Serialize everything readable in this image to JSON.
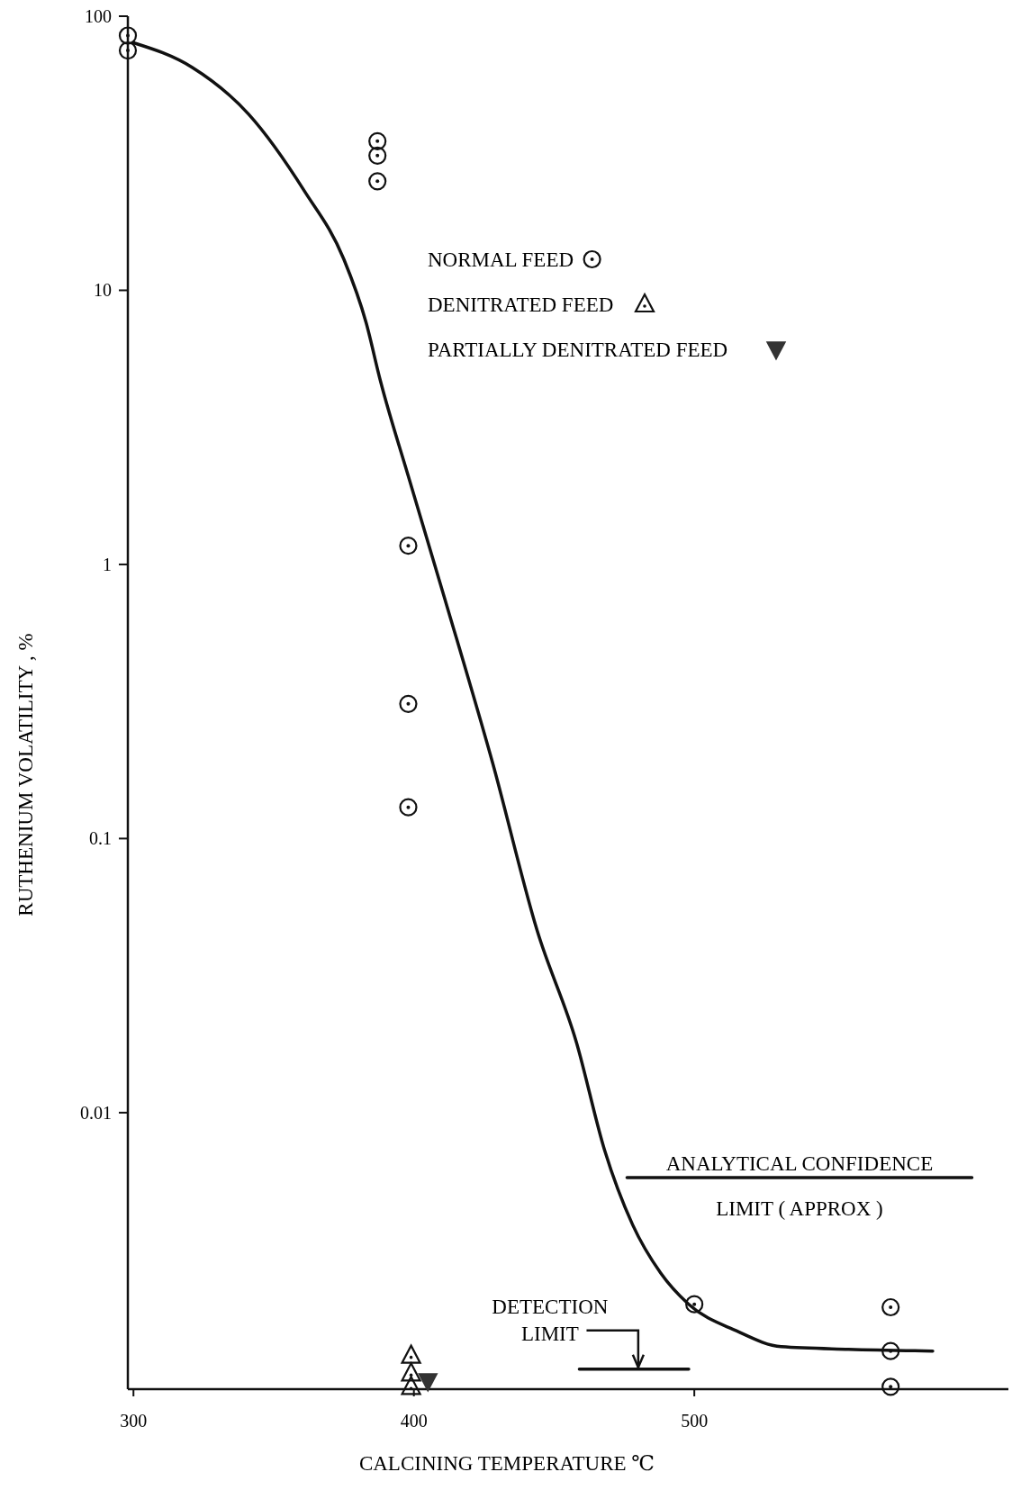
{
  "chart_data": {
    "type": "scatter",
    "xlabel": "CALCINING TEMPERATURE ℃",
    "ylabel": "RUTHENIUM VOLATILITY , %",
    "log": "y",
    "xlim": [
      298,
      612
    ],
    "ylim": [
      0.00098,
      100
    ],
    "xticks": [
      300,
      400,
      500
    ],
    "yticks": [
      0.01,
      0.1,
      1,
      10,
      100
    ],
    "grid": false,
    "legend": "top right",
    "annotations": [
      "ANALYTICAL CONFIDENCE",
      "LIMIT ( APPROX )",
      {
        "text": "DETECTION",
        "x": 480,
        "y": 0.00116
      },
      {
        "text": "LIMIT",
        "x": 480,
        "y": 0.00116
      }
    ],
    "series": [
      {
        "type": "line",
        "color": "#111111",
        "marker": "none",
        "line_style": "solid",
        "x": [
          300,
          321,
          341,
          361,
          375,
          383,
          388,
          398,
          411,
          428,
          444,
          458,
          468,
          478,
          488,
          498,
          515,
          531,
          555,
          585
        ],
        "values": [
          80,
          65,
          44,
          23,
          13,
          7.6,
          4.7,
          2.1,
          0.75,
          0.19,
          0.046,
          0.018,
          0.0073,
          0.0039,
          0.0026,
          0.002,
          0.0016,
          0.0014,
          0.00137,
          0.00135
        ]
      },
      {
        "type": "line",
        "color": "#111111",
        "marker": "none",
        "line_style": "solid",
        "x": [
          476,
          599
        ],
        "values": [
          0.0058,
          0.0058
        ]
      },
      {
        "type": "line",
        "color": "#111111",
        "marker": "none",
        "line_style": "solid",
        "x": [
          459,
          498
        ],
        "values": [
          0.00116,
          0.00116
        ]
      },
      {
        "name": "NORMAL FEED",
        "color": "#111111",
        "marker": "circle",
        "x": [
          298,
          298,
          387,
          387,
          387,
          398,
          398,
          398,
          500,
          570,
          570,
          570
        ],
        "values": [
          85,
          75,
          35,
          31,
          25,
          1.17,
          0.31,
          0.13,
          0.002,
          0.00195,
          0.00135,
          0.001
        ]
      },
      {
        "name": "DENITRATED FEED",
        "color": "#111111",
        "marker": "triangle",
        "x": [
          399,
          399,
          399
        ],
        "values": [
          0.0013,
          0.00112,
          0.001
        ]
      },
      {
        "name": "PARTIALLY DENITRATED FEED",
        "color": "#333333",
        "marker": "triangle-down",
        "x": [
          405
        ],
        "values": [
          0.00105
        ]
      }
    ]
  }
}
